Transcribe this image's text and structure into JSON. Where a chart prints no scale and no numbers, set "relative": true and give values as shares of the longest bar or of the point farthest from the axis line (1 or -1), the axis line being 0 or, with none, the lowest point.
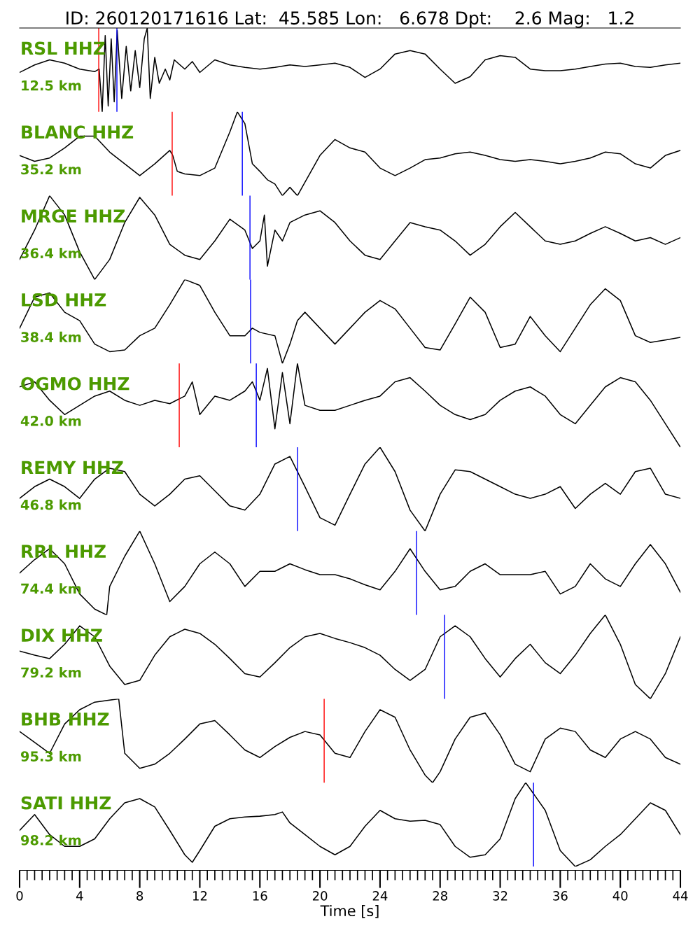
{
  "chart_data": [
    {
      "type": "line",
      "title": "ID: 260120171616 Lat:  45.585 Lon:   6.678 Dpt:    2.6 Mag:   1.2",
      "relative": true,
      "xlim": [
        0,
        44
      ],
      "tick_labels": false,
      "annotations": [
        "RSL HHZ",
        "12.5 km"
      ],
      "ref_lines": [
        {
          "axis": "x",
          "value": 5.27,
          "color": "#ff0000"
        },
        {
          "axis": "x",
          "value": 6.48,
          "color": "#0000ff"
        }
      ],
      "series": [
        {
          "color": "#000000",
          "x": [
            0,
            1,
            2,
            3,
            4,
            5,
            5.3,
            5.5,
            5.7,
            5.9,
            6.1,
            6.3,
            6.5,
            6.8,
            7.1,
            7.4,
            7.7,
            8,
            8.3,
            8.5,
            8.7,
            9,
            9.3,
            9.7,
            10,
            10.3,
            11,
            11.5,
            12,
            13,
            14,
            15,
            16,
            17,
            18,
            19,
            20,
            21,
            22,
            23,
            24,
            25,
            26,
            27,
            28,
            29,
            30,
            31,
            32,
            33,
            34,
            35,
            36,
            37,
            38,
            39,
            40,
            41,
            42,
            43,
            44
          ],
          "values": [
            0.47,
            0.56,
            0.62,
            0.58,
            0.51,
            0.48,
            0.51,
            0,
            0.91,
            0.07,
            0.87,
            0.12,
            0.97,
            0.16,
            0.78,
            0.25,
            0.73,
            0.29,
            0.87,
            1.0,
            0.16,
            0.65,
            0.34,
            0.51,
            0.38,
            0.62,
            0.51,
            0.6,
            0.47,
            0.62,
            0.56,
            0.53,
            0.51,
            0.53,
            0.56,
            0.54,
            0.56,
            0.58,
            0.53,
            0.41,
            0.51,
            0.69,
            0.73,
            0.69,
            0.51,
            0.34,
            0.42,
            0.62,
            0.67,
            0.65,
            0.51,
            0.49,
            0.49,
            0.51,
            0.54,
            0.57,
            0.58,
            0.54,
            0.53,
            0.56,
            0.58
          ]
        }
      ]
    },
    {
      "type": "line",
      "relative": true,
      "xlim": [
        0,
        44
      ],
      "tick_labels": false,
      "annotations": [
        "BLANC HHZ",
        "35.2 km"
      ],
      "ref_lines": [
        {
          "axis": "x",
          "value": 10.16,
          "color": "#ff0000"
        },
        {
          "axis": "x",
          "value": 14.83,
          "color": "#0000ff"
        }
      ],
      "series": [
        {
          "color": "#000000",
          "x": [
            0,
            1,
            2,
            3,
            4,
            5,
            6,
            7,
            8,
            9,
            10,
            10.2,
            10.5,
            11,
            12,
            13,
            14,
            14.5,
            15,
            15.5,
            16,
            16.5,
            17,
            17.5,
            18,
            18.5,
            19,
            20,
            21,
            22,
            23,
            24,
            25,
            26,
            27,
            28,
            29,
            30,
            31,
            32,
            33,
            34,
            35,
            36,
            37,
            38,
            39,
            40,
            41,
            42,
            43,
            44
          ],
          "values": [
            0.48,
            0.41,
            0.45,
            0.57,
            0.71,
            0.71,
            0.52,
            0.38,
            0.24,
            0.38,
            0.54,
            0.48,
            0.29,
            0.26,
            0.24,
            0.33,
            0.76,
            1.0,
            0.86,
            0.38,
            0.29,
            0.19,
            0.14,
            0,
            0.1,
            0,
            0.16,
            0.48,
            0.67,
            0.57,
            0.52,
            0.33,
            0.24,
            0.33,
            0.43,
            0.45,
            0.5,
            0.52,
            0.48,
            0.43,
            0.41,
            0.43,
            0.41,
            0.38,
            0.41,
            0.45,
            0.52,
            0.5,
            0.38,
            0.33,
            0.48,
            0.54
          ]
        }
      ]
    },
    {
      "type": "line",
      "relative": true,
      "xlim": [
        0,
        44
      ],
      "tick_labels": false,
      "annotations": [
        "MRGE HHZ",
        "36.4 km"
      ],
      "ref_lines": [
        {
          "axis": "x",
          "value": 15.34,
          "color": "#0000ff"
        }
      ],
      "series": [
        {
          "color": "#000000",
          "x": [
            0,
            1,
            2,
            3,
            4,
            5,
            6,
            7,
            8,
            9,
            10,
            11,
            12,
            13,
            14,
            15,
            15.5,
            16,
            16.3,
            16.5,
            17,
            17.5,
            18,
            19,
            20,
            21,
            22,
            23,
            24,
            25,
            26,
            27,
            28,
            29,
            30,
            31,
            32,
            33,
            34,
            35,
            36,
            37,
            38,
            39,
            40,
            41,
            42,
            43,
            44
          ],
          "values": [
            0.24,
            0.59,
            1.0,
            0.77,
            0.33,
            0,
            0.24,
            0.68,
            0.98,
            0.77,
            0.42,
            0.29,
            0.24,
            0.46,
            0.72,
            0.59,
            0.37,
            0.46,
            0.77,
            0.16,
            0.59,
            0.46,
            0.68,
            0.77,
            0.82,
            0.68,
            0.46,
            0.29,
            0.24,
            0.46,
            0.68,
            0.63,
            0.59,
            0.46,
            0.29,
            0.42,
            0.63,
            0.8,
            0.63,
            0.46,
            0.42,
            0.46,
            0.55,
            0.63,
            0.55,
            0.46,
            0.5,
            0.42,
            0.5
          ]
        }
      ]
    },
    {
      "type": "line",
      "relative": true,
      "xlim": [
        0,
        44
      ],
      "tick_labels": false,
      "annotations": [
        "LSD HHZ",
        "38.4 km"
      ],
      "ref_lines": [
        {
          "axis": "x",
          "value": 15.38,
          "color": "#0000ff"
        }
      ],
      "series": [
        {
          "color": "#000000",
          "x": [
            0,
            1,
            2,
            3,
            4,
            5,
            6,
            7,
            8,
            9,
            10,
            11,
            12,
            13,
            14,
            15,
            15.5,
            16,
            17,
            17.5,
            18,
            18.5,
            19,
            20,
            21,
            22,
            23,
            24,
            25,
            26,
            27,
            28,
            29,
            30,
            31,
            32,
            33,
            34,
            35,
            36,
            37,
            38,
            39,
            40,
            41,
            42,
            43,
            44
          ],
          "values": [
            0.42,
            0.79,
            0.84,
            0.61,
            0.51,
            0.23,
            0.14,
            0.16,
            0.33,
            0.42,
            0.7,
            1.0,
            0.93,
            0.61,
            0.33,
            0.33,
            0.42,
            0.37,
            0.33,
            0,
            0.23,
            0.51,
            0.61,
            0.42,
            0.23,
            0.42,
            0.61,
            0.75,
            0.65,
            0.42,
            0.19,
            0.16,
            0.47,
            0.79,
            0.61,
            0.19,
            0.23,
            0.56,
            0.33,
            0.14,
            0.42,
            0.7,
            0.89,
            0.75,
            0.33,
            0.25,
            0.28,
            0.31
          ]
        }
      ]
    },
    {
      "type": "line",
      "relative": true,
      "xlim": [
        0,
        44
      ],
      "tick_labels": false,
      "annotations": [
        "OGMO HHZ",
        "42.0 km"
      ],
      "ref_lines": [
        {
          "axis": "x",
          "value": 10.63,
          "color": "#ff0000"
        },
        {
          "axis": "x",
          "value": 15.76,
          "color": "#0000ff"
        }
      ],
      "series": [
        {
          "color": "#000000",
          "x": [
            0,
            1,
            2,
            3,
            4,
            5,
            6,
            7,
            8,
            9,
            10,
            11,
            11.5,
            12,
            13,
            14,
            15,
            15.5,
            16,
            16.5,
            17,
            17.5,
            18,
            18.5,
            19,
            20,
            21,
            22,
            23,
            24,
            25,
            26,
            27,
            28,
            29,
            30,
            31,
            32,
            33,
            34,
            35,
            36,
            37,
            38,
            39,
            40,
            41,
            42,
            43,
            44
          ],
          "values": [
            0.72,
            0.78,
            0.56,
            0.39,
            0.5,
            0.61,
            0.67,
            0.56,
            0.5,
            0.56,
            0.52,
            0.61,
            0.78,
            0.39,
            0.61,
            0.56,
            0.67,
            0.78,
            0.56,
            0.94,
            0.22,
            0.89,
            0.28,
            1.0,
            0.5,
            0.44,
            0.44,
            0.5,
            0.56,
            0.61,
            0.78,
            0.83,
            0.67,
            0.5,
            0.39,
            0.33,
            0.39,
            0.56,
            0.67,
            0.72,
            0.61,
            0.39,
            0.28,
            0.5,
            0.72,
            0.83,
            0.78,
            0.56,
            0.28,
            0
          ]
        }
      ]
    },
    {
      "type": "line",
      "relative": true,
      "xlim": [
        0,
        44
      ],
      "tick_labels": false,
      "annotations": [
        "REMY HHZ",
        "46.8 km"
      ],
      "ref_lines": [
        {
          "axis": "x",
          "value": 18.51,
          "color": "#0000ff"
        }
      ],
      "series": [
        {
          "color": "#000000",
          "x": [
            0,
            1,
            2,
            3,
            4,
            5,
            6,
            7,
            8,
            9,
            10,
            11,
            12,
            13,
            14,
            15,
            16,
            17,
            18,
            19,
            20,
            21,
            22,
            23,
            24,
            25,
            26,
            27,
            28,
            29,
            30,
            31,
            32,
            33,
            34,
            35,
            36,
            37,
            38,
            39,
            40,
            41,
            42,
            43,
            44
          ],
          "values": [
            0.39,
            0.53,
            0.62,
            0.53,
            0.39,
            0.62,
            0.75,
            0.71,
            0.44,
            0.3,
            0.44,
            0.62,
            0.66,
            0.48,
            0.3,
            0.25,
            0.44,
            0.8,
            0.89,
            0.53,
            0.16,
            0.07,
            0.44,
            0.8,
            1.0,
            0.71,
            0.25,
            0,
            0.44,
            0.73,
            0.71,
            0.62,
            0.53,
            0.44,
            0.39,
            0.44,
            0.53,
            0.27,
            0.44,
            0.57,
            0.44,
            0.71,
            0.75,
            0.44,
            0.39
          ]
        }
      ]
    },
    {
      "type": "line",
      "relative": true,
      "xlim": [
        0,
        44
      ],
      "tick_labels": false,
      "annotations": [
        "RRL HHZ",
        "74.4 km"
      ],
      "ref_lines": [
        {
          "axis": "x",
          "value": 26.43,
          "color": "#0000ff"
        }
      ],
      "series": [
        {
          "color": "#000000",
          "x": [
            0,
            1,
            2,
            3,
            4,
            5,
            5.8,
            6,
            7,
            8,
            9,
            10,
            11,
            12,
            13,
            14,
            15,
            16,
            17,
            18,
            19,
            20,
            21,
            22,
            23,
            24,
            25,
            26,
            27,
            28,
            29,
            30,
            31,
            32,
            33,
            34,
            35,
            36,
            37,
            38,
            39,
            40,
            41,
            42,
            43,
            44
          ],
          "values": [
            0.5,
            0.66,
            0.79,
            0.61,
            0.25,
            0.07,
            0,
            0.34,
            0.7,
            1.0,
            0.61,
            0.16,
            0.34,
            0.61,
            0.75,
            0.61,
            0.34,
            0.52,
            0.52,
            0.61,
            0.54,
            0.48,
            0.48,
            0.43,
            0.36,
            0.3,
            0.52,
            0.79,
            0.52,
            0.3,
            0.34,
            0.52,
            0.61,
            0.48,
            0.48,
            0.48,
            0.52,
            0.25,
            0.34,
            0.61,
            0.43,
            0.34,
            0.61,
            0.84,
            0.61,
            0.27
          ]
        }
      ]
    },
    {
      "type": "line",
      "relative": true,
      "xlim": [
        0,
        44
      ],
      "tick_labels": false,
      "annotations": [
        "DIX HHZ",
        "79.2 km"
      ],
      "ref_lines": [
        {
          "axis": "x",
          "value": 28.3,
          "color": "#0000ff"
        }
      ],
      "series": [
        {
          "color": "#000000",
          "x": [
            0,
            1,
            2,
            3,
            4,
            5,
            6,
            7,
            8,
            9,
            10,
            11,
            12,
            13,
            14,
            15,
            16,
            17,
            18,
            19,
            20,
            21,
            22,
            23,
            24,
            25,
            26,
            27,
            28,
            29,
            30,
            31,
            32,
            33,
            34,
            35,
            36,
            37,
            38,
            39,
            40,
            41,
            42,
            43,
            44
          ],
          "values": [
            0.57,
            0.52,
            0.48,
            0.65,
            0.87,
            0.74,
            0.39,
            0.17,
            0.22,
            0.52,
            0.74,
            0.83,
            0.78,
            0.65,
            0.48,
            0.3,
            0.26,
            0.43,
            0.61,
            0.74,
            0.78,
            0.72,
            0.67,
            0.61,
            0.52,
            0.35,
            0.22,
            0.35,
            0.74,
            0.87,
            0.74,
            0.48,
            0.26,
            0.48,
            0.65,
            0.43,
            0.3,
            0.52,
            0.78,
            1.0,
            0.65,
            0.17,
            0,
            0.3,
            0.74
          ]
        }
      ]
    },
    {
      "type": "line",
      "relative": true,
      "xlim": [
        0,
        44
      ],
      "tick_labels": false,
      "annotations": [
        "BHB HHZ",
        "95.3 km"
      ],
      "ref_lines": [
        {
          "axis": "x",
          "value": 20.28,
          "color": "#ff0000"
        }
      ],
      "series": [
        {
          "color": "#000000",
          "x": [
            0,
            1,
            2,
            3,
            4,
            5,
            6.6,
            7,
            8,
            9,
            10,
            11,
            12,
            13,
            14,
            15,
            16,
            17,
            18,
            19,
            20,
            21,
            22,
            23,
            24,
            25,
            26,
            27,
            27.5,
            28,
            29,
            30,
            31,
            32,
            33,
            34,
            35,
            36,
            37,
            38,
            39,
            40,
            41,
            42,
            43,
            44
          ],
          "values": [
            0.61,
            0.48,
            0.35,
            0.7,
            0.87,
            0.96,
            1.0,
            0.35,
            0.17,
            0.22,
            0.35,
            0.52,
            0.7,
            0.74,
            0.57,
            0.39,
            0.3,
            0.43,
            0.54,
            0.61,
            0.57,
            0.35,
            0.3,
            0.61,
            0.87,
            0.78,
            0.39,
            0.09,
            0,
            0.13,
            0.52,
            0.78,
            0.83,
            0.57,
            0.22,
            0.13,
            0.52,
            0.65,
            0.61,
            0.39,
            0.3,
            0.52,
            0.61,
            0.52,
            0.3,
            0.22
          ]
        }
      ]
    },
    {
      "type": "line",
      "relative": true,
      "xlim": [
        0,
        44
      ],
      "xticks": [
        0,
        4,
        8,
        12,
        16,
        20,
        24,
        28,
        32,
        36,
        40,
        44
      ],
      "xlabel": "Time [s]",
      "tick_labels": "x",
      "annotations": [
        "SATI HHZ",
        "98.2 km"
      ],
      "ref_lines": [
        {
          "axis": "x",
          "value": 34.22,
          "color": "#0000ff"
        }
      ],
      "series": [
        {
          "color": "#000000",
          "x": [
            0,
            1,
            2,
            3,
            4,
            5,
            6,
            7,
            8,
            9,
            10,
            11,
            11.5,
            12,
            13,
            14,
            15,
            16,
            17,
            17.5,
            18,
            19,
            20,
            21,
            22,
            23,
            24,
            25,
            26,
            27,
            28,
            29,
            30,
            31,
            32,
            33,
            33.7,
            35,
            36,
            37,
            38,
            39,
            40,
            41,
            42,
            43,
            44
          ],
          "values": [
            0.43,
            0.62,
            0.38,
            0.24,
            0.24,
            0.33,
            0.57,
            0.76,
            0.81,
            0.71,
            0.43,
            0.14,
            0.05,
            0.19,
            0.48,
            0.57,
            0.59,
            0.6,
            0.62,
            0.65,
            0.52,
            0.38,
            0.24,
            0.14,
            0.24,
            0.48,
            0.67,
            0.57,
            0.54,
            0.55,
            0.5,
            0.24,
            0.11,
            0.14,
            0.33,
            0.81,
            1.0,
            0.67,
            0.19,
            0,
            0.08,
            0.24,
            0.38,
            0.57,
            0.76,
            0.67,
            0.38
          ]
        }
      ]
    }
  ]
}
